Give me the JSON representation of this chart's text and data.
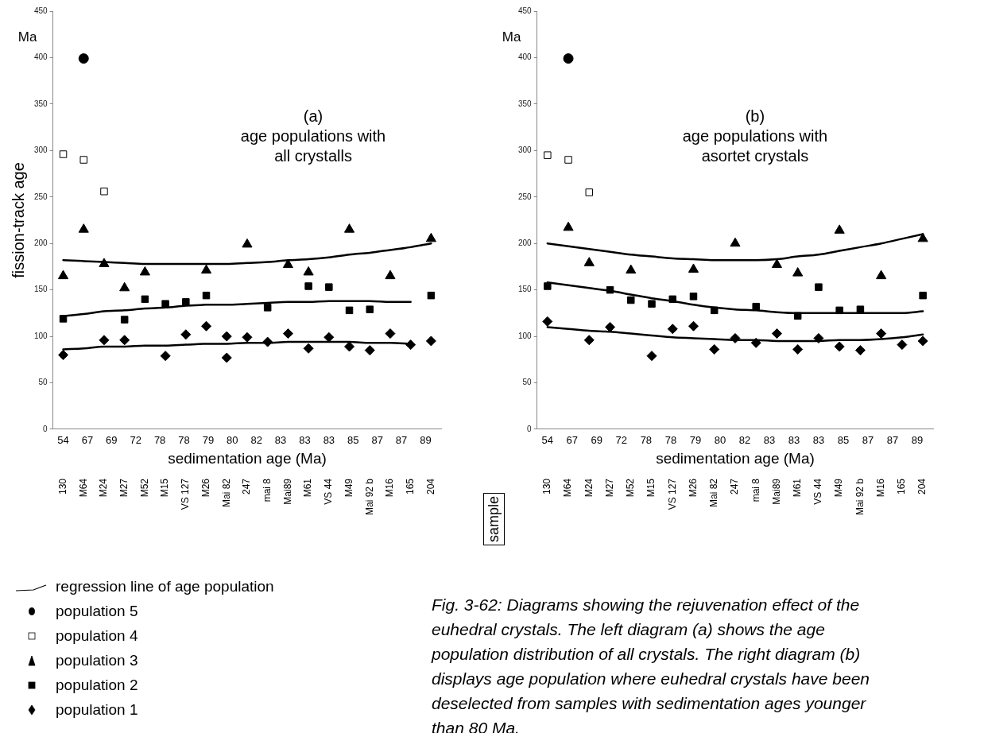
{
  "chart_data": [
    {
      "type": "scatter",
      "title": "(a)\nage populations with\nall crystalls",
      "xlabel": "sedimentation age (Ma)",
      "ylabel": "fission-track age",
      "ylim": [
        0,
        450
      ],
      "yticks": [
        0,
        50,
        100,
        150,
        200,
        250,
        300,
        350,
        400,
        450
      ],
      "grid": false,
      "legend": "bottom left",
      "categories": [
        "130",
        "M64",
        "M24",
        "M27",
        "M52",
        "M15",
        "VS 127",
        "M26",
        "Mai 82",
        "247",
        "mai 8",
        "Mai89",
        "M61",
        "VS 44",
        "M49",
        "Mai 92 b",
        "M16",
        "165",
        "204"
      ],
      "annotations": [
        "Ma",
        "sample",
        "54",
        "67",
        "69",
        "72",
        "78",
        "78",
        "79",
        "80",
        "82",
        "83",
        "83",
        "83",
        "85",
        "87",
        "87",
        "89"
      ],
      "series": [
        {
          "type": "line",
          "name": "regression line of age population",
          "color": "#000000",
          "marker": "none",
          "values": [
            182,
            181,
            180,
            179,
            178,
            178,
            178,
            178,
            178,
            179,
            180,
            182,
            183,
            185,
            188,
            190,
            193,
            196,
            200
          ]
        },
        {
          "name": "population 5",
          "color": "#000000",
          "marker": "circle",
          "x": [
            "M64"
          ],
          "values": [
            399
          ]
        },
        {
          "name": "population 4",
          "color": "#ffffff",
          "marker": "square",
          "x": [
            "130",
            "M64",
            "M24"
          ],
          "values": [
            296,
            290,
            256
          ]
        },
        {
          "name": "population 3",
          "color": "#000000",
          "marker": "triangle",
          "x": [
            "130",
            "M64",
            "M24",
            "M27",
            "M52",
            "M26",
            "247",
            "Mai89",
            "M61",
            "M49",
            "M16",
            "204"
          ],
          "values": [
            165,
            215,
            178,
            152,
            169,
            171,
            199,
            177,
            169,
            215,
            165,
            205
          ]
        },
        {
          "name": "population 2",
          "color": "#000000",
          "marker": "square",
          "x": [
            "130",
            "M27",
            "M52",
            "M15",
            "VS 127",
            "M26",
            "mai 8",
            "M61",
            "VS 44",
            "M49",
            "Mai 92 b",
            "204"
          ],
          "values": [
            119,
            118,
            140,
            135,
            137,
            144,
            131,
            154,
            153,
            128,
            129,
            144
          ]
        },
        {
          "name": "population 1",
          "color": "#000000",
          "marker": "diamond",
          "x": [
            "130",
            "M24",
            "M27",
            "M15",
            "VS 127",
            "M26",
            "Mai 82",
            "Mai 82",
            "247",
            "mai 8",
            "Mai89",
            "M61",
            "VS 44",
            "M49",
            "Mai 92 b",
            "M16",
            "165",
            "204"
          ],
          "values": [
            80,
            96,
            96,
            79,
            102,
            111,
            100,
            77,
            99,
            94,
            103,
            87,
            99,
            89,
            85,
            103,
            91,
            95
          ]
        },
        {
          "type": "line",
          "color": "#000000",
          "marker": "none",
          "values": [
            122,
            124,
            127,
            128,
            130,
            131,
            133,
            134,
            134,
            135,
            136,
            137,
            137,
            138,
            138,
            138,
            137,
            137,
            null
          ]
        },
        {
          "type": "line",
          "color": "#000000",
          "marker": "none",
          "values": [
            86,
            87,
            89,
            89,
            90,
            90,
            91,
            92,
            92,
            93,
            93,
            94,
            94,
            94,
            94,
            93,
            93,
            92,
            null
          ]
        }
      ]
    },
    {
      "type": "scatter",
      "title": "(b)\nage populations with\nasortet crystals",
      "xlabel": "sedimentation age (Ma)",
      "ylim": [
        0,
        450
      ],
      "yticks": [
        0,
        50,
        100,
        150,
        200,
        250,
        300,
        350,
        400,
        450
      ],
      "grid": false,
      "categories": [
        "130",
        "M64",
        "M24",
        "M27",
        "M52",
        "M15",
        "VS 127",
        "M26",
        "Mai 82",
        "247",
        "mai 8",
        "Mai89",
        "M61",
        "VS 44",
        "M49",
        "Mai 92 b",
        "M16",
        "165",
        "204"
      ],
      "annotations": [
        "Ma",
        "Fig. 3-62: Diagrams showing the rejuvenation effect of the euhedral crystals. The left diagram (a) shows the age population distribution of all crystals. The right diagram (b) displays age population where euhedral crystals have been deselected from samples with sedimentation ages younger than 80 Ma.",
        "54",
        "67",
        "69",
        "72",
        "78",
        "78",
        "79",
        "80",
        "82",
        "83",
        "83",
        "83",
        "85",
        "87",
        "87",
        "89"
      ],
      "series": [
        {
          "type": "line",
          "color": "#000000",
          "marker": "none",
          "values": [
            200,
            197,
            194,
            191,
            188,
            186,
            184,
            183,
            182,
            182,
            182,
            183,
            186,
            188,
            192,
            196,
            200,
            205,
            210
          ]
        },
        {
          "color": "#000000",
          "marker": "circle",
          "x": [
            "M64"
          ],
          "values": [
            399
          ]
        },
        {
          "color": "#ffffff",
          "marker": "square",
          "x": [
            "130",
            "M64",
            "M24"
          ],
          "values": [
            295,
            290,
            255
          ]
        },
        {
          "color": "#000000",
          "marker": "triangle",
          "x": [
            "M64",
            "M24",
            "M52",
            "M26",
            "247",
            "Mai89",
            "M61",
            "M49",
            "M16",
            "204"
          ],
          "values": [
            217,
            179,
            171,
            172,
            200,
            177,
            168,
            214,
            165,
            205
          ]
        },
        {
          "color": "#000000",
          "marker": "square",
          "x": [
            "130",
            "M27",
            "M52",
            "M15",
            "VS 127",
            "M26",
            "Mai 82",
            "mai 8",
            "M61",
            "VS 44",
            "M49",
            "Mai 92 b",
            "204"
          ],
          "values": [
            154,
            150,
            139,
            135,
            140,
            143,
            128,
            132,
            122,
            153,
            128,
            129,
            144
          ]
        },
        {
          "color": "#000000",
          "marker": "diamond",
          "x": [
            "130",
            "M24",
            "M27",
            "M15",
            "VS 127",
            "M26",
            "Mai 82",
            "247",
            "mai 8",
            "Mai89",
            "M61",
            "VS 44",
            "M49",
            "Mai 92 b",
            "M16",
            "165",
            "204"
          ],
          "values": [
            116,
            96,
            110,
            79,
            108,
            111,
            86,
            98,
            93,
            103,
            86,
            98,
            89,
            85,
            103,
            91,
            95
          ]
        },
        {
          "type": "line",
          "color": "#000000",
          "marker": "none",
          "values": [
            158,
            155,
            152,
            149,
            145,
            141,
            138,
            134,
            131,
            129,
            128,
            126,
            125,
            125,
            125,
            125,
            125,
            125,
            127
          ]
        },
        {
          "type": "line",
          "color": "#000000",
          "marker": "none",
          "values": [
            110,
            108,
            106,
            105,
            103,
            101,
            99,
            98,
            97,
            96,
            96,
            95,
            95,
            95,
            96,
            96,
            97,
            99,
            102
          ]
        }
      ]
    }
  ]
}
